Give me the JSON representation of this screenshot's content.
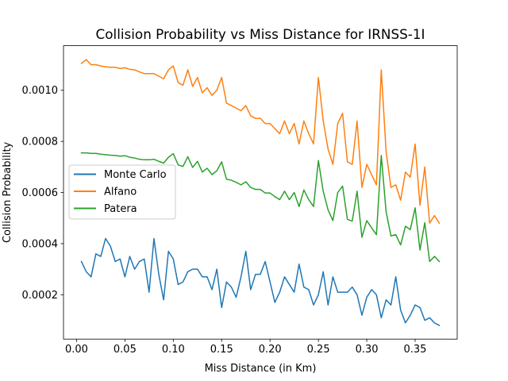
{
  "chart_data": {
    "type": "line",
    "title": "Collision Probability vs Miss Distance for IRNSS-1I",
    "xlabel": "Miss Distance (in Km)",
    "ylabel": "Collision Probability",
    "xlim": [
      -0.0135,
      0.3935
    ],
    "ylim": [
      2.65e-05,
      0.0011743
    ],
    "xticks": [
      0.0,
      0.05,
      0.1,
      0.15,
      0.2,
      0.25,
      0.3,
      0.35
    ],
    "xtick_labels": [
      "0.00",
      "0.05",
      "0.10",
      "0.15",
      "0.20",
      "0.25",
      "0.30",
      "0.35"
    ],
    "yticks": [
      0.0002,
      0.0004,
      0.0006,
      0.0008,
      0.001
    ],
    "ytick_labels": [
      "0.0002",
      "0.0004",
      "0.0006",
      "0.0008",
      "0.0010"
    ],
    "grid": false,
    "legend_position": "center-left",
    "x": [
      0.005,
      0.01,
      0.015,
      0.02,
      0.025,
      0.03,
      0.035,
      0.04,
      0.045,
      0.05,
      0.055,
      0.06,
      0.065,
      0.07,
      0.075,
      0.08,
      0.085,
      0.09,
      0.095,
      0.1,
      0.105,
      0.11,
      0.115,
      0.12,
      0.125,
      0.13,
      0.135,
      0.14,
      0.145,
      0.15,
      0.155,
      0.16,
      0.165,
      0.17,
      0.175,
      0.18,
      0.185,
      0.19,
      0.195,
      0.2,
      0.205,
      0.21,
      0.215,
      0.22,
      0.225,
      0.23,
      0.235,
      0.24,
      0.245,
      0.25,
      0.255,
      0.26,
      0.265,
      0.27,
      0.275,
      0.28,
      0.285,
      0.29,
      0.295,
      0.3,
      0.305,
      0.31,
      0.315,
      0.32,
      0.325,
      0.33,
      0.335,
      0.34,
      0.345,
      0.35,
      0.355,
      0.36,
      0.365,
      0.37,
      0.375
    ],
    "series": [
      {
        "name": "Monte Carlo",
        "color": "#1f77b4",
        "values": [
          0.00033,
          0.00029,
          0.00027,
          0.00036,
          0.00035,
          0.00042,
          0.00039,
          0.00033,
          0.00034,
          0.00027,
          0.00035,
          0.0003,
          0.00033,
          0.00034,
          0.00021,
          0.00042,
          0.00028,
          0.00018,
          0.00037,
          0.00034,
          0.00024,
          0.00025,
          0.00029,
          0.0003,
          0.0003,
          0.00027,
          0.00027,
          0.00022,
          0.0003,
          0.00015,
          0.00025,
          0.00023,
          0.00019,
          0.00027,
          0.00037,
          0.00022,
          0.00028,
          0.00028,
          0.00033,
          0.00025,
          0.00017,
          0.00021,
          0.00027,
          0.00024,
          0.00021,
          0.00032,
          0.00023,
          0.00022,
          0.00016,
          0.0002,
          0.00029,
          0.00016,
          0.00027,
          0.00021,
          0.00021,
          0.00021,
          0.00023,
          0.0002,
          0.00012,
          0.00019,
          0.00022,
          0.0002,
          0.00011,
          0.00018,
          0.00016,
          0.00027,
          0.00014,
          9e-05,
          0.00012,
          0.00016,
          0.00015,
          0.0001,
          0.00011,
          9e-05,
          8e-05
        ]
      },
      {
        "name": "Alfano",
        "color": "#ff7f0e",
        "values": [
          0.001105,
          0.00112,
          0.0011,
          0.0011,
          0.001095,
          0.001092,
          0.00109,
          0.00109,
          0.001085,
          0.001088,
          0.001082,
          0.00108,
          0.001072,
          0.001065,
          0.001065,
          0.001065,
          0.001055,
          0.001045,
          0.00108,
          0.001095,
          0.00103,
          0.00102,
          0.00108,
          0.001015,
          0.00105,
          0.00099,
          0.00101,
          0.00098,
          0.001,
          0.00105,
          0.00095,
          0.00094,
          0.00093,
          0.00092,
          0.00094,
          0.0009,
          0.00089,
          0.00089,
          0.00087,
          0.00087,
          0.00085,
          0.00083,
          0.00088,
          0.00083,
          0.00087,
          0.00079,
          0.00088,
          0.00083,
          0.00079,
          0.00105,
          0.00088,
          0.00077,
          0.00071,
          0.00087,
          0.00091,
          0.00072,
          0.00071,
          0.00088,
          0.00062,
          0.00071,
          0.00067,
          0.00063,
          0.00108,
          0.00076,
          0.00062,
          0.00063,
          0.00057,
          0.00068,
          0.00066,
          0.00079,
          0.00055,
          0.0007,
          0.00048,
          0.00051,
          0.00048
        ]
      },
      {
        "name": "Patera",
        "color": "#2ca02c",
        "values": [
          0.000755,
          0.000755,
          0.000753,
          0.000753,
          0.00075,
          0.000748,
          0.000746,
          0.000745,
          0.000742,
          0.000744,
          0.000738,
          0.000735,
          0.00073,
          0.000728,
          0.000728,
          0.00073,
          0.000722,
          0.000715,
          0.000738,
          0.000752,
          0.000708,
          0.000702,
          0.00074,
          0.000698,
          0.000722,
          0.00068,
          0.000695,
          0.00067,
          0.000685,
          0.00072,
          0.000652,
          0.000648,
          0.00064,
          0.00063,
          0.000642,
          0.00062,
          0.000612,
          0.000612,
          0.000598,
          0.000598,
          0.000584,
          0.000572,
          0.000605,
          0.000572,
          0.0006,
          0.000545,
          0.00061,
          0.000572,
          0.000545,
          0.000725,
          0.000605,
          0.000532,
          0.00049,
          0.0006,
          0.000625,
          0.000495,
          0.000488,
          0.000605,
          0.000425,
          0.00049,
          0.000462,
          0.000435,
          0.000745,
          0.000525,
          0.00043,
          0.000435,
          0.000395,
          0.000468,
          0.000455,
          0.00054,
          0.000375,
          0.000482,
          0.00033,
          0.00035,
          0.00033
        ]
      }
    ]
  }
}
